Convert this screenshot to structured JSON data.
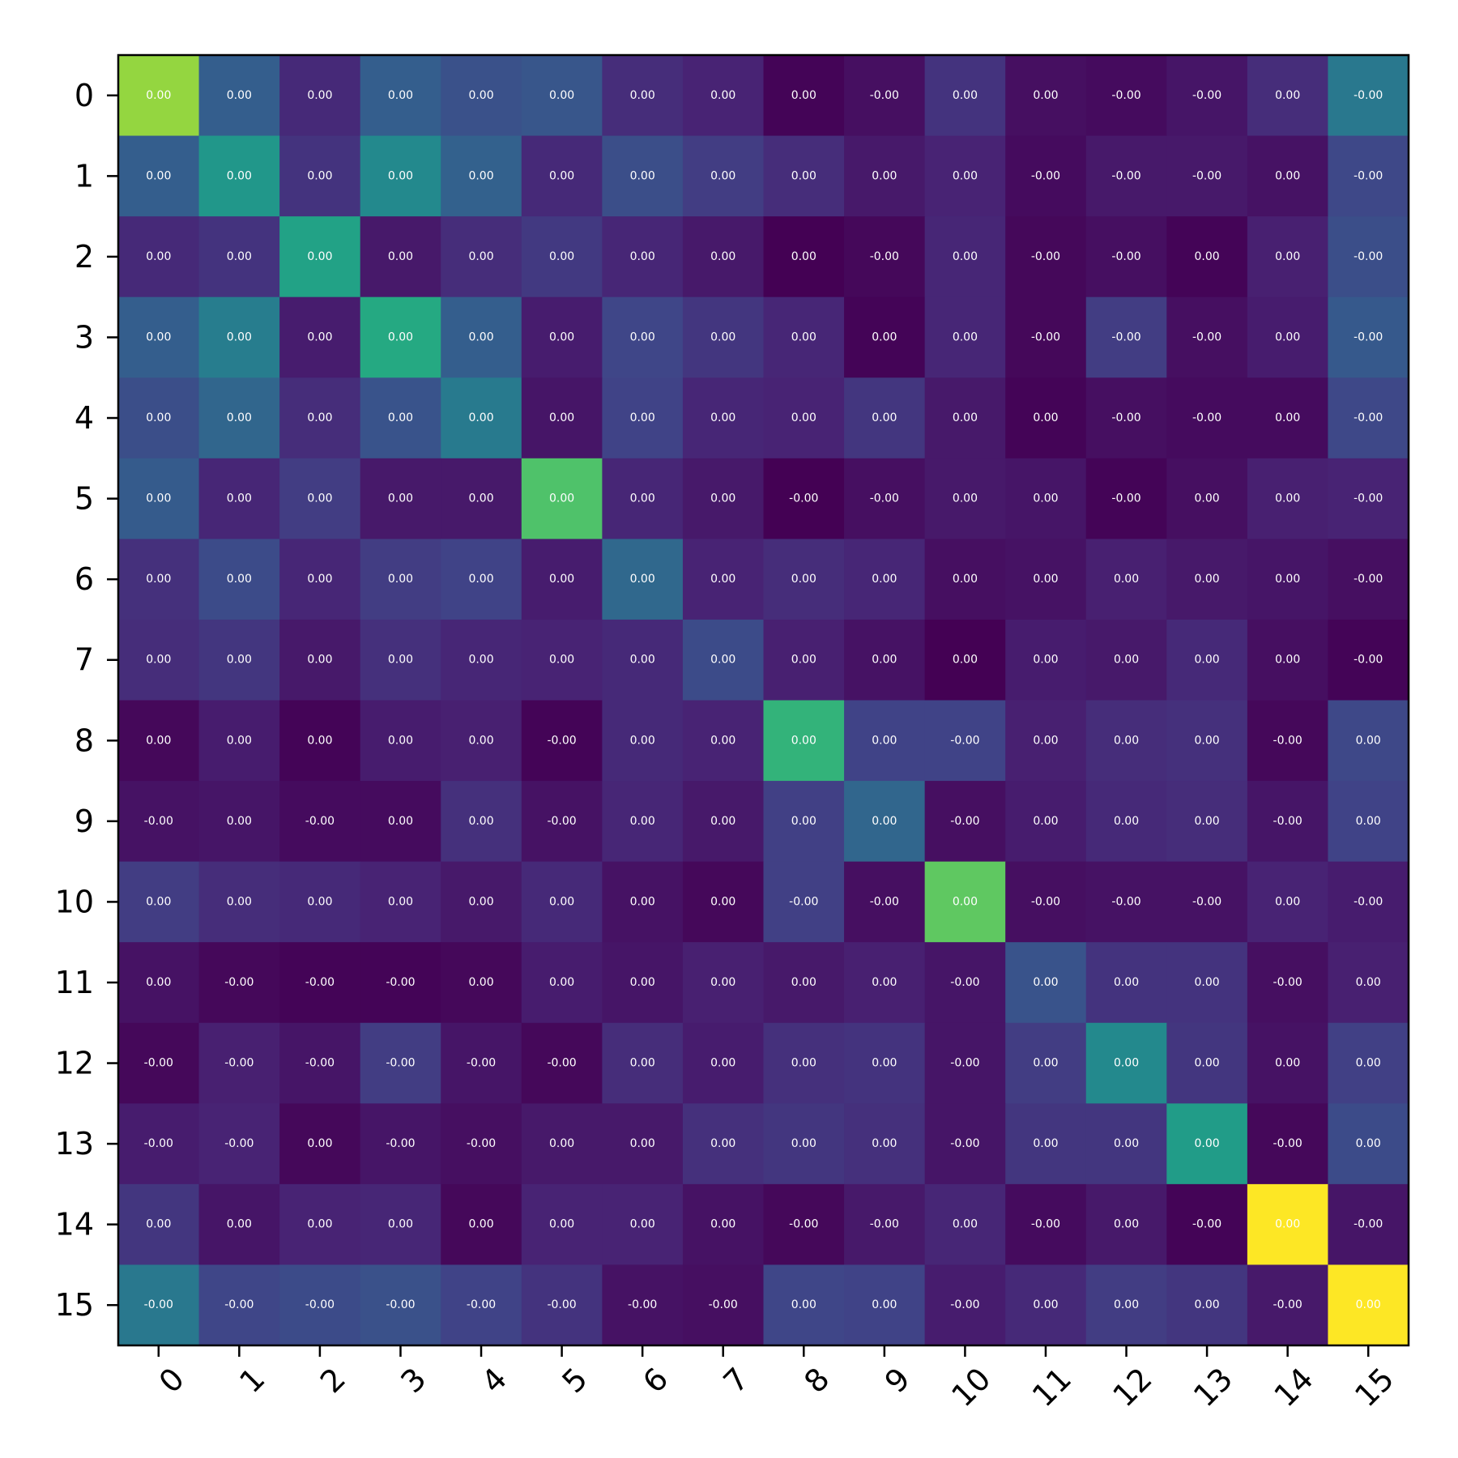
{
  "chart_data": {
    "type": "heatmap",
    "title": "",
    "xlabel": "",
    "ylabel": "",
    "colormap": "viridis",
    "grid": false,
    "legend": "none",
    "x_tick_labels": [
      "0",
      "1",
      "2",
      "3",
      "4",
      "5",
      "6",
      "7",
      "8",
      "9",
      "10",
      "11",
      "12",
      "13",
      "14",
      "15"
    ],
    "y_tick_labels": [
      "0",
      "1",
      "2",
      "3",
      "4",
      "5",
      "6",
      "7",
      "8",
      "9",
      "10",
      "11",
      "12",
      "13",
      "14",
      "15"
    ],
    "cell_labels": [
      [
        "0.00",
        "0.00",
        "0.00",
        "0.00",
        "0.00",
        "0.00",
        "0.00",
        "0.00",
        "0.00",
        "-0.00",
        "0.00",
        "0.00",
        "-0.00",
        "-0.00",
        "0.00",
        "-0.00"
      ],
      [
        "0.00",
        "0.00",
        "0.00",
        "0.00",
        "0.00",
        "0.00",
        "0.00",
        "0.00",
        "0.00",
        "0.00",
        "0.00",
        "-0.00",
        "-0.00",
        "-0.00",
        "0.00",
        "-0.00"
      ],
      [
        "0.00",
        "0.00",
        "0.00",
        "0.00",
        "0.00",
        "0.00",
        "0.00",
        "0.00",
        "0.00",
        "-0.00",
        "0.00",
        "-0.00",
        "-0.00",
        "0.00",
        "0.00",
        "-0.00"
      ],
      [
        "0.00",
        "0.00",
        "0.00",
        "0.00",
        "0.00",
        "0.00",
        "0.00",
        "0.00",
        "0.00",
        "0.00",
        "0.00",
        "-0.00",
        "-0.00",
        "-0.00",
        "0.00",
        "-0.00"
      ],
      [
        "0.00",
        "0.00",
        "0.00",
        "0.00",
        "0.00",
        "0.00",
        "0.00",
        "0.00",
        "0.00",
        "0.00",
        "0.00",
        "0.00",
        "-0.00",
        "-0.00",
        "0.00",
        "-0.00"
      ],
      [
        "0.00",
        "0.00",
        "0.00",
        "0.00",
        "0.00",
        "0.00",
        "0.00",
        "0.00",
        "-0.00",
        "-0.00",
        "0.00",
        "0.00",
        "-0.00",
        "0.00",
        "0.00",
        "-0.00"
      ],
      [
        "0.00",
        "0.00",
        "0.00",
        "0.00",
        "0.00",
        "0.00",
        "0.00",
        "0.00",
        "0.00",
        "0.00",
        "0.00",
        "0.00",
        "0.00",
        "0.00",
        "0.00",
        "-0.00"
      ],
      [
        "0.00",
        "0.00",
        "0.00",
        "0.00",
        "0.00",
        "0.00",
        "0.00",
        "0.00",
        "0.00",
        "0.00",
        "0.00",
        "0.00",
        "0.00",
        "0.00",
        "0.00",
        "-0.00"
      ],
      [
        "0.00",
        "0.00",
        "0.00",
        "0.00",
        "0.00",
        "-0.00",
        "0.00",
        "0.00",
        "0.00",
        "0.00",
        "-0.00",
        "0.00",
        "0.00",
        "0.00",
        "-0.00",
        "0.00"
      ],
      [
        "-0.00",
        "0.00",
        "-0.00",
        "0.00",
        "0.00",
        "-0.00",
        "0.00",
        "0.00",
        "0.00",
        "0.00",
        "-0.00",
        "0.00",
        "0.00",
        "0.00",
        "-0.00",
        "0.00"
      ],
      [
        "0.00",
        "0.00",
        "0.00",
        "0.00",
        "0.00",
        "0.00",
        "0.00",
        "0.00",
        "-0.00",
        "-0.00",
        "0.00",
        "-0.00",
        "-0.00",
        "-0.00",
        "0.00",
        "-0.00"
      ],
      [
        "0.00",
        "-0.00",
        "-0.00",
        "-0.00",
        "0.00",
        "0.00",
        "0.00",
        "0.00",
        "0.00",
        "0.00",
        "-0.00",
        "0.00",
        "0.00",
        "0.00",
        "-0.00",
        "0.00"
      ],
      [
        "-0.00",
        "-0.00",
        "-0.00",
        "-0.00",
        "-0.00",
        "-0.00",
        "0.00",
        "0.00",
        "0.00",
        "0.00",
        "-0.00",
        "0.00",
        "0.00",
        "0.00",
        "0.00",
        "0.00"
      ],
      [
        "-0.00",
        "-0.00",
        "0.00",
        "-0.00",
        "-0.00",
        "0.00",
        "0.00",
        "0.00",
        "0.00",
        "0.00",
        "-0.00",
        "0.00",
        "0.00",
        "0.00",
        "-0.00",
        "0.00"
      ],
      [
        "0.00",
        "0.00",
        "0.00",
        "0.00",
        "0.00",
        "0.00",
        "0.00",
        "0.00",
        "-0.00",
        "-0.00",
        "0.00",
        "-0.00",
        "0.00",
        "-0.00",
        "0.00",
        "-0.00"
      ],
      [
        "-0.00",
        "-0.00",
        "-0.00",
        "-0.00",
        "-0.00",
        "-0.00",
        "-0.00",
        "-0.00",
        "0.00",
        "0.00",
        "-0.00",
        "0.00",
        "0.00",
        "0.00",
        "-0.00",
        "0.00"
      ]
    ],
    "color_intensity": [
      [
        0.84,
        0.3,
        0.12,
        0.3,
        0.25,
        0.27,
        0.13,
        0.1,
        0.01,
        0.04,
        0.15,
        0.04,
        0.03,
        0.06,
        0.13,
        0.4
      ],
      [
        0.3,
        0.53,
        0.15,
        0.47,
        0.31,
        0.12,
        0.24,
        0.18,
        0.13,
        0.07,
        0.1,
        0.03,
        0.07,
        0.07,
        0.05,
        0.22
      ],
      [
        0.12,
        0.15,
        0.58,
        0.07,
        0.13,
        0.17,
        0.11,
        0.07,
        0.0,
        0.02,
        0.11,
        0.02,
        0.04,
        0.01,
        0.09,
        0.24
      ],
      [
        0.3,
        0.42,
        0.08,
        0.61,
        0.3,
        0.08,
        0.21,
        0.16,
        0.11,
        0.01,
        0.11,
        0.02,
        0.18,
        0.04,
        0.08,
        0.28
      ],
      [
        0.24,
        0.33,
        0.13,
        0.26,
        0.41,
        0.06,
        0.2,
        0.11,
        0.1,
        0.16,
        0.07,
        0.01,
        0.04,
        0.03,
        0.03,
        0.22
      ],
      [
        0.29,
        0.11,
        0.18,
        0.07,
        0.07,
        0.72,
        0.11,
        0.07,
        0.0,
        0.04,
        0.07,
        0.06,
        0.01,
        0.04,
        0.09,
        0.1
      ],
      [
        0.14,
        0.23,
        0.11,
        0.18,
        0.2,
        0.08,
        0.34,
        0.1,
        0.13,
        0.11,
        0.04,
        0.05,
        0.09,
        0.07,
        0.06,
        0.04
      ],
      [
        0.13,
        0.16,
        0.07,
        0.14,
        0.11,
        0.1,
        0.12,
        0.23,
        0.09,
        0.05,
        0.0,
        0.08,
        0.07,
        0.12,
        0.04,
        0.01
      ],
      [
        0.02,
        0.08,
        0.01,
        0.08,
        0.09,
        0.01,
        0.12,
        0.1,
        0.65,
        0.2,
        0.2,
        0.09,
        0.13,
        0.14,
        0.02,
        0.22
      ],
      [
        0.05,
        0.06,
        0.03,
        0.03,
        0.14,
        0.05,
        0.11,
        0.07,
        0.19,
        0.33,
        0.04,
        0.08,
        0.12,
        0.13,
        0.06,
        0.2
      ],
      [
        0.18,
        0.13,
        0.12,
        0.1,
        0.07,
        0.12,
        0.05,
        0.02,
        0.19,
        0.04,
        0.75,
        0.04,
        0.05,
        0.05,
        0.1,
        0.08
      ],
      [
        0.05,
        0.02,
        0.01,
        0.01,
        0.02,
        0.08,
        0.06,
        0.09,
        0.07,
        0.09,
        0.06,
        0.26,
        0.15,
        0.15,
        0.04,
        0.09
      ],
      [
        0.02,
        0.09,
        0.06,
        0.18,
        0.06,
        0.02,
        0.13,
        0.08,
        0.14,
        0.15,
        0.06,
        0.18,
        0.47,
        0.16,
        0.05,
        0.19
      ],
      [
        0.08,
        0.1,
        0.02,
        0.06,
        0.04,
        0.07,
        0.07,
        0.14,
        0.16,
        0.14,
        0.06,
        0.16,
        0.16,
        0.55,
        0.02,
        0.23
      ],
      [
        0.16,
        0.06,
        0.1,
        0.11,
        0.02,
        0.1,
        0.1,
        0.05,
        0.02,
        0.07,
        0.11,
        0.03,
        0.07,
        0.01,
        1.0,
        0.06
      ],
      [
        0.4,
        0.21,
        0.23,
        0.25,
        0.2,
        0.15,
        0.05,
        0.04,
        0.21,
        0.2,
        0.08,
        0.12,
        0.18,
        0.16,
        0.07,
        1.0
      ]
    ]
  }
}
